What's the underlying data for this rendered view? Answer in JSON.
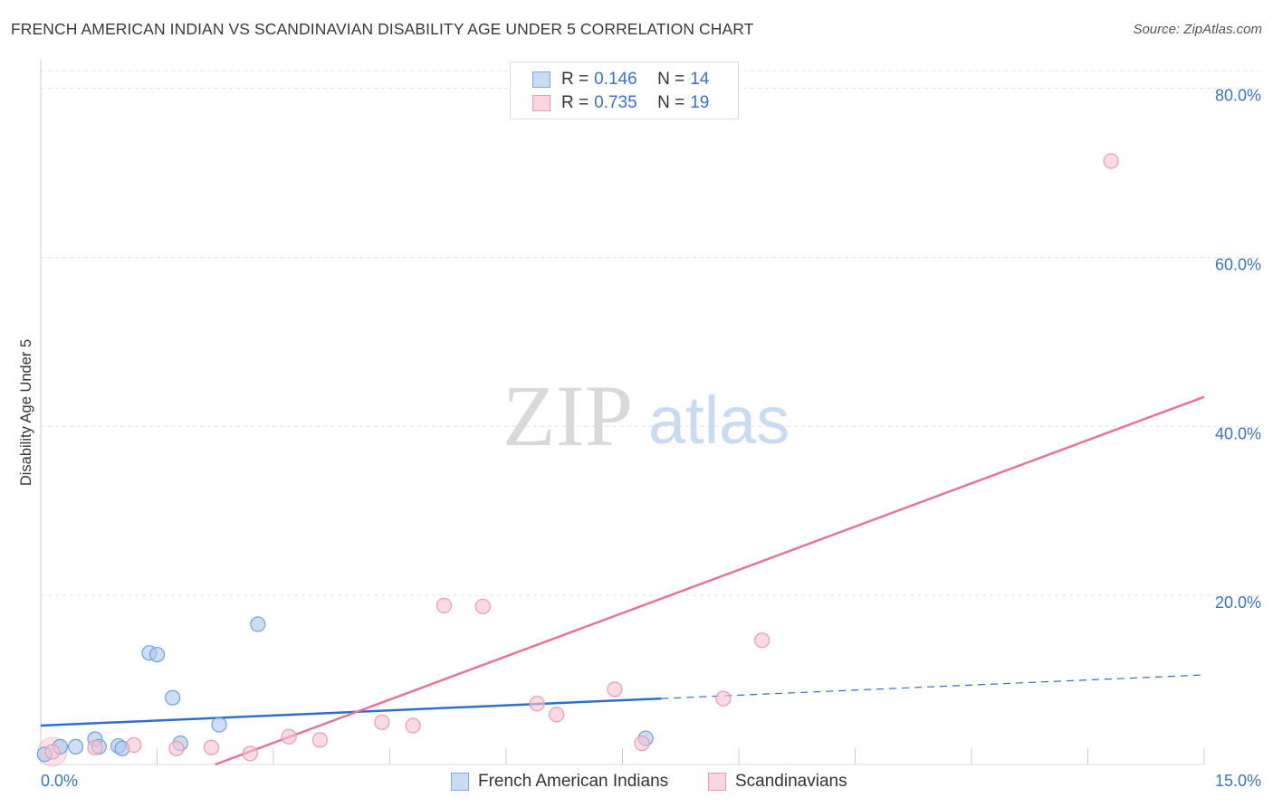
{
  "title": "FRENCH AMERICAN INDIAN VS SCANDINAVIAN DISABILITY AGE UNDER 5 CORRELATION CHART",
  "source": "Source: ZipAtlas.com",
  "watermark": {
    "zip": "ZIP",
    "atlas": "atlas"
  },
  "legend": {
    "rows": [
      {
        "r_label": "R =",
        "r_value": "0.146",
        "n_label": "N =",
        "n_value": "14",
        "color": "#a9c8f0",
        "stroke": "#7da7de"
      },
      {
        "r_label": "R =",
        "r_value": "0.735",
        "n_label": "N =",
        "n_value": "19",
        "color": "#f8c2d2",
        "stroke": "#ee98b2"
      }
    ]
  },
  "chart_data": {
    "type": "scatter",
    "xlabel": "",
    "ylabel": "Disability Age Under 5",
    "xlim": [
      0,
      15
    ],
    "ylim": [
      0,
      82
    ],
    "x_tick_labels": [
      "0.0%",
      "15.0%"
    ],
    "y_ticks": [
      20,
      40,
      60,
      80
    ],
    "y_tick_labels": [
      "20.0%",
      "40.0%",
      "60.0%",
      "80.0%"
    ],
    "grid": true,
    "series": [
      {
        "name": "French American Indians",
        "color": "#a9c8f0",
        "stroke": "#6f9fdc",
        "line_color": "#2f6fcc",
        "points": [
          [
            0.05,
            1.2
          ],
          [
            0.25,
            2.1
          ],
          [
            0.45,
            2.1
          ],
          [
            0.7,
            3.0
          ],
          [
            0.75,
            2.1
          ],
          [
            1.0,
            2.2
          ],
          [
            1.05,
            1.9
          ],
          [
            1.4,
            13.2
          ],
          [
            1.5,
            13.0
          ],
          [
            1.7,
            7.9
          ],
          [
            1.8,
            2.5
          ],
          [
            2.3,
            4.7
          ],
          [
            2.8,
            16.6
          ],
          [
            7.8,
            3.1
          ]
        ],
        "trend": {
          "x0": 0,
          "y0": 4.6,
          "x1": 8.0,
          "y1": 7.8,
          "dash_x1": 15,
          "dash_y1": 10.6
        }
      },
      {
        "name": "Scandinavians",
        "color": "#f8c2d2",
        "stroke": "#ee98b2",
        "line_color": "#e8729b",
        "points": [
          [
            0.15,
            1.5
          ],
          [
            0.7,
            2.0
          ],
          [
            1.2,
            2.3
          ],
          [
            1.75,
            1.9
          ],
          [
            2.2,
            2.0
          ],
          [
            2.7,
            1.3
          ],
          [
            3.2,
            3.3
          ],
          [
            3.6,
            2.9
          ],
          [
            4.4,
            5.0
          ],
          [
            4.8,
            4.6
          ],
          [
            5.2,
            18.8
          ],
          [
            5.7,
            18.7
          ],
          [
            6.4,
            7.2
          ],
          [
            6.65,
            5.9
          ],
          [
            7.4,
            8.9
          ],
          [
            7.75,
            2.5
          ],
          [
            8.8,
            7.8
          ],
          [
            9.3,
            14.7
          ],
          [
            13.8,
            71.4
          ]
        ],
        "trend": {
          "x0": 2.25,
          "y0": 0,
          "x1": 15,
          "y1": 43.5
        }
      }
    ]
  }
}
